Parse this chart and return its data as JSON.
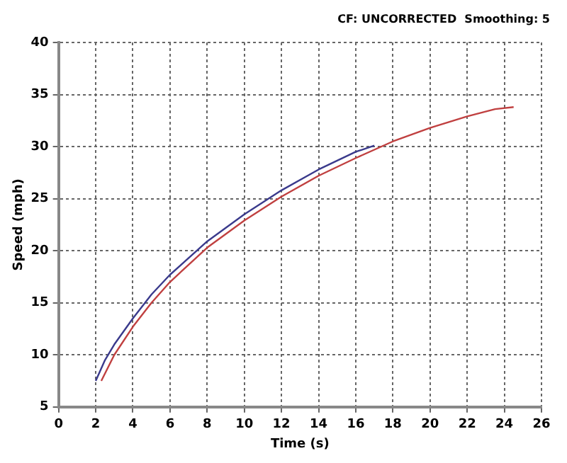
{
  "chart_data": {
    "type": "line",
    "xlabel": "Time (s)",
    "ylabel": "Speed (mph)",
    "annotations": [
      "CF: UNCORRECTED  Smoothing: 5"
    ],
    "xlim": [
      0,
      26
    ],
    "xticks": [
      0,
      2,
      4,
      6,
      8,
      10,
      12,
      14,
      16,
      18,
      20,
      22,
      24,
      26
    ],
    "ylim": [
      5,
      40
    ],
    "yticks": [
      5,
      10,
      15,
      20,
      25,
      30,
      35,
      40
    ],
    "grid": true,
    "line_style": "solid",
    "marker": "none",
    "series": [
      {
        "color": "#3a3a8c",
        "x": [
          2,
          2.5,
          3,
          4,
          5,
          6,
          8,
          10,
          12,
          14,
          16,
          17
        ],
        "values": [
          7.5,
          9.5,
          11,
          13.5,
          15.8,
          17.7,
          20.9,
          23.5,
          25.8,
          27.8,
          29.5,
          30.1
        ]
      },
      {
        "color": "#c04040",
        "x": [
          2.3,
          3,
          4,
          5,
          6,
          8,
          10,
          12,
          14,
          16,
          18,
          20,
          22,
          23.5,
          24.5
        ],
        "values": [
          7.5,
          10,
          12.7,
          15,
          17,
          20.3,
          22.9,
          25.2,
          27.2,
          28.9,
          30.5,
          31.8,
          32.9,
          33.6,
          33.8
        ]
      }
    ]
  }
}
